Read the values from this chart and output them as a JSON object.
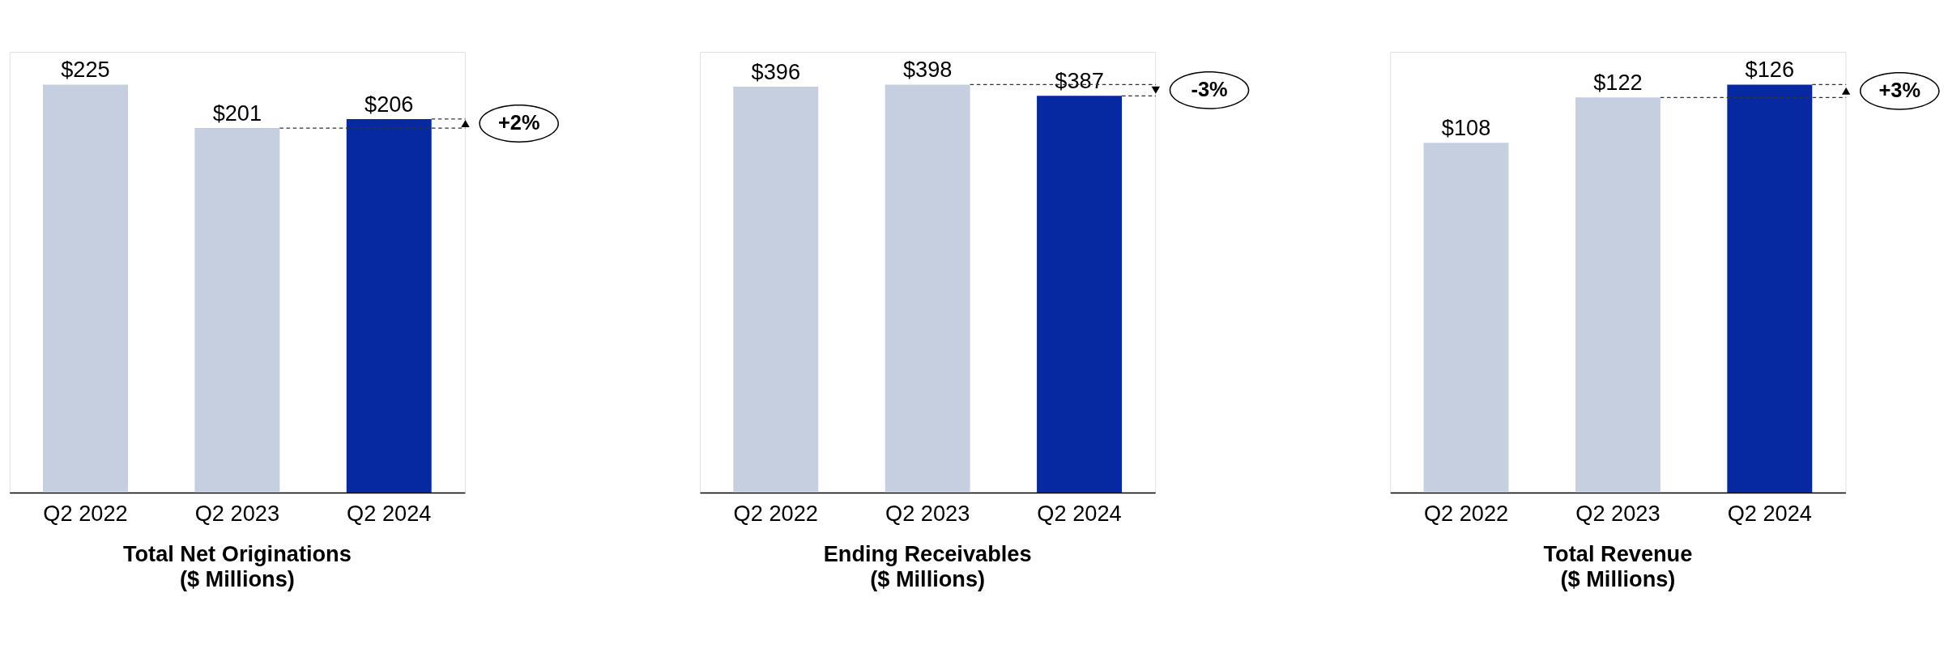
{
  "chart_data": [
    {
      "type": "bar",
      "title": "Total Net Originations",
      "subtitle": "($ Millions)",
      "categories": [
        "Q2 2022",
        "Q2 2023",
        "Q2 2024"
      ],
      "values": [
        225,
        201,
        206
      ],
      "colors": [
        "#c5cfe0",
        "#c5cfe0",
        "#0628a0"
      ],
      "value_labels": [
        "$225",
        "$201",
        "$206"
      ],
      "ref_lines": [
        {
          "axis": "y",
          "value": 201,
          "line_style": "dashed"
        }
      ],
      "annotations": [
        "+2%"
      ],
      "tick_labels": "x"
    },
    {
      "type": "bar",
      "title": "Ending Receivables",
      "subtitle": "($ Millions)",
      "categories": [
        "Q2 2022",
        "Q2 2023",
        "Q2 2024"
      ],
      "values": [
        396,
        398,
        387
      ],
      "colors": [
        "#c5cfe0",
        "#c5cfe0",
        "#0628a0"
      ],
      "value_labels": [
        "$396",
        "$398",
        "$387"
      ],
      "ref_lines": [
        {
          "axis": "y",
          "value": 398,
          "line_style": "dashed"
        }
      ],
      "annotations": [
        "-3%"
      ],
      "tick_labels": "x"
    },
    {
      "type": "bar",
      "title": "Total Revenue",
      "subtitle": "($ Millions)",
      "categories": [
        "Q2 2022",
        "Q2 2023",
        "Q2 2024"
      ],
      "values": [
        108,
        122,
        126
      ],
      "colors": [
        "#c5cfe0",
        "#c5cfe0",
        "#0628a0"
      ],
      "value_labels": [
        "$108",
        "$122",
        "$126"
      ],
      "ref_lines": [
        {
          "axis": "y",
          "value": 122,
          "line_style": "dashed"
        }
      ],
      "annotations": [
        "+3%"
      ],
      "tick_labels": "x"
    }
  ]
}
